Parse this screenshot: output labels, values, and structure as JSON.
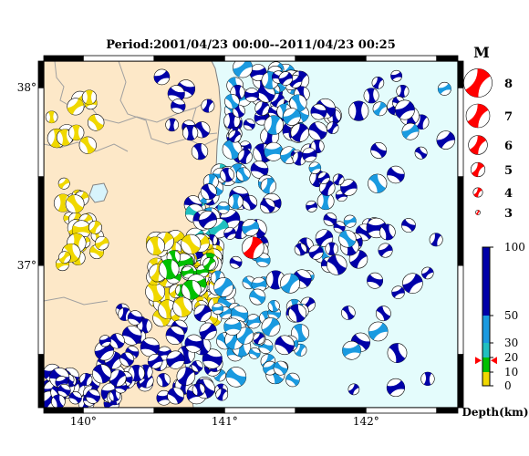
{
  "title": "Period:2001/04/23 00:00--2011/04/23 00:25",
  "map": {
    "lon_range": [
      139.72,
      142.65
    ],
    "lat_range": [
      36.2,
      38.15
    ],
    "lon_ticks": [
      {
        "value": 140,
        "label": "140°"
      },
      {
        "value": 141,
        "label": "141°"
      },
      {
        "value": 142,
        "label": "142°"
      }
    ],
    "lat_ticks": [
      {
        "value": 37,
        "label": "37°"
      },
      {
        "value": 38,
        "label": "38°"
      }
    ],
    "colors": {
      "land": "#fde8c8",
      "sea": "#e4fcfc",
      "boundary": "#a0a0a0",
      "lake": "#d8f4fc"
    },
    "mainshock": {
      "lon": 141.2,
      "lat": 37.1,
      "color": "#ff0000"
    }
  },
  "magnitude_legend": {
    "title": "M",
    "items": [
      {
        "label": "8",
        "m": 8
      },
      {
        "label": "7",
        "m": 7
      },
      {
        "label": "6",
        "m": 6
      },
      {
        "label": "5",
        "m": 5
      },
      {
        "label": "4",
        "m": 4
      },
      {
        "label": "3",
        "m": 3
      }
    ],
    "color": "#ff0000"
  },
  "depth_scale": {
    "title": "Depth(km)",
    "ticks": [
      {
        "label": "100",
        "value": 100
      },
      {
        "label": "50",
        "value": 50
      },
      {
        "label": "30",
        "value": 30
      },
      {
        "label": "20",
        "value": 20
      },
      {
        "label": "10",
        "value": 10
      },
      {
        "label": "0",
        "value": 0
      }
    ],
    "bands": [
      {
        "from": 0,
        "to": 10,
        "color": "#f0d800"
      },
      {
        "from": 10,
        "to": 20,
        "color": "#00c000"
      },
      {
        "from": 20,
        "to": 30,
        "color": "#20c0c0"
      },
      {
        "from": 30,
        "to": 50,
        "color": "#1a9ae0"
      },
      {
        "from": 50,
        "to": 100,
        "color": "#0000a8"
      }
    ],
    "mainshock_depth": 18
  }
}
